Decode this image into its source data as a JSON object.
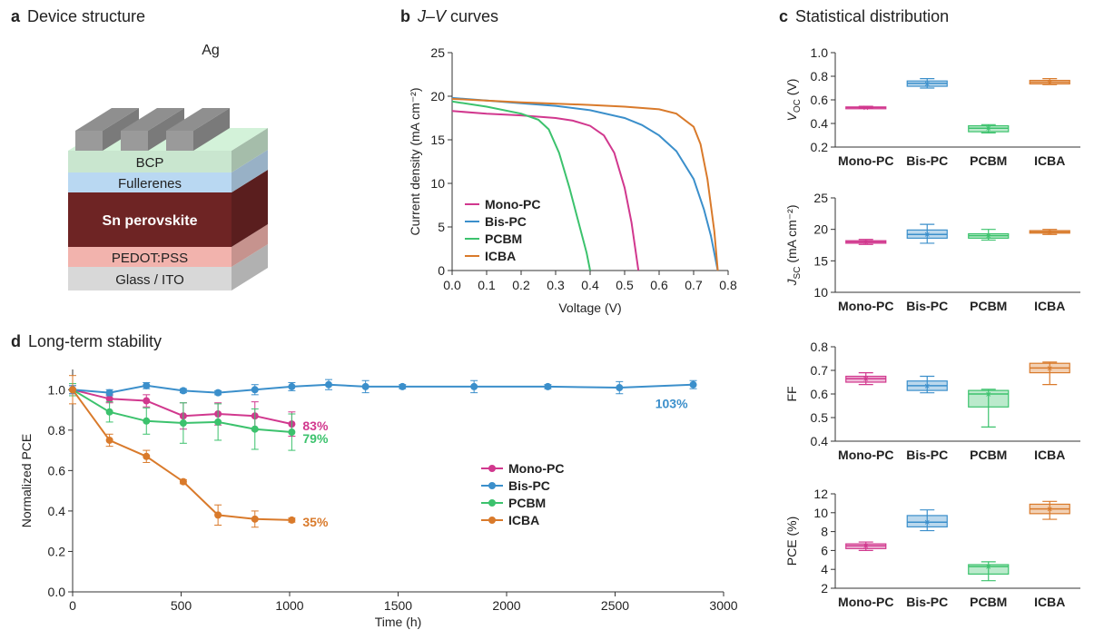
{
  "panels": {
    "a": {
      "letter": "a",
      "title": "Device structure"
    },
    "b": {
      "letter": "b",
      "title_italic": "J–V",
      "title_rest": " curves"
    },
    "c": {
      "letter": "c",
      "title": "Statistical distribution"
    },
    "d": {
      "letter": "d",
      "title": "Long-term stability"
    }
  },
  "device_structure": {
    "layers": [
      {
        "label": "Glass / ITO",
        "color": "#d8d8d8"
      },
      {
        "label": "PEDOT:PSS",
        "color": "#f2b3ad"
      },
      {
        "label": "Sn perovskite",
        "color": "#6e2424"
      },
      {
        "label": "Fullerenes",
        "color": "#b9d8f2"
      },
      {
        "label": "BCP",
        "color": "#c9e6cf"
      }
    ],
    "electrode_label": "Ag",
    "colors": {
      "ag": "#8f8f8f"
    }
  },
  "colors": {
    "Mono-PC": "#d1388e",
    "Bis-PC": "#3b8fcb",
    "PCBM": "#3cc26d",
    "ICBA": "#d97a2b"
  },
  "chart_data": [
    {
      "id": "jv",
      "type": "line",
      "xlabel": "Voltage (V)",
      "ylabel": "Current density (mA cm⁻²)",
      "xlim": [
        0,
        0.8
      ],
      "ylim": [
        0,
        25
      ],
      "xticks": [
        "0.0",
        "0.1",
        "0.2",
        "0.3",
        "0.4",
        "0.5",
        "0.6",
        "0.7",
        "0.8"
      ],
      "yticks": [
        "0",
        "5",
        "10",
        "15",
        "20",
        "25"
      ],
      "legend": "bottom-left",
      "series": [
        {
          "name": "Mono-PC",
          "x": [
            0,
            0.1,
            0.2,
            0.3,
            0.35,
            0.4,
            0.44,
            0.47,
            0.5,
            0.52,
            0.54
          ],
          "y": [
            18.3,
            18.0,
            17.8,
            17.5,
            17.2,
            16.6,
            15.5,
            13.5,
            9.5,
            5.5,
            0
          ]
        },
        {
          "name": "Bis-PC",
          "x": [
            0,
            0.1,
            0.2,
            0.3,
            0.4,
            0.5,
            0.55,
            0.6,
            0.65,
            0.7,
            0.73,
            0.75,
            0.77
          ],
          "y": [
            19.8,
            19.5,
            19.2,
            18.9,
            18.4,
            17.5,
            16.7,
            15.5,
            13.7,
            10.5,
            7.0,
            4.0,
            0
          ]
        },
        {
          "name": "PCBM",
          "x": [
            0,
            0.1,
            0.2,
            0.25,
            0.28,
            0.31,
            0.34,
            0.37,
            0.39,
            0.4
          ],
          "y": [
            19.4,
            18.8,
            18.0,
            17.3,
            16.2,
            13.5,
            9.5,
            5.0,
            2.0,
            0
          ]
        },
        {
          "name": "ICBA",
          "x": [
            0,
            0.2,
            0.4,
            0.5,
            0.6,
            0.65,
            0.7,
            0.72,
            0.74,
            0.76,
            0.77
          ],
          "y": [
            19.7,
            19.3,
            19.0,
            18.8,
            18.5,
            18.0,
            16.5,
            14.5,
            10.5,
            4.5,
            0
          ]
        }
      ]
    },
    {
      "id": "voc",
      "type": "box",
      "ylabel_main": "V",
      "ylabel_sub": "OC",
      "ylabel_unit": " (V)",
      "ylim": [
        0.2,
        1.0
      ],
      "yticks": [
        "0.2",
        "0.4",
        "0.6",
        "0.8",
        "1.0"
      ],
      "categories": [
        "Mono-PC",
        "Bis-PC",
        "PCBM",
        "ICBA"
      ],
      "boxes": [
        {
          "min": 0.53,
          "q1": 0.533,
          "median": 0.536,
          "q3": 0.54,
          "max": 0.545
        },
        {
          "min": 0.7,
          "q1": 0.715,
          "median": 0.74,
          "q3": 0.76,
          "max": 0.78
        },
        {
          "min": 0.32,
          "q1": 0.33,
          "median": 0.36,
          "q3": 0.38,
          "max": 0.39
        },
        {
          "min": 0.73,
          "q1": 0.735,
          "median": 0.75,
          "q3": 0.765,
          "max": 0.78
        }
      ]
    },
    {
      "id": "jsc",
      "type": "box",
      "ylabel_main": "J",
      "ylabel_sub": "SC",
      "ylabel_unit": " (mA cm⁻²)",
      "ylim": [
        10,
        25
      ],
      "yticks": [
        "10",
        "15",
        "20",
        "25"
      ],
      "categories": [
        "Mono-PC",
        "Bis-PC",
        "PCBM",
        "ICBA"
      ],
      "boxes": [
        {
          "min": 17.6,
          "q1": 17.8,
          "median": 18.0,
          "q3": 18.2,
          "max": 18.4
        },
        {
          "min": 17.8,
          "q1": 18.6,
          "median": 19.2,
          "q3": 19.9,
          "max": 20.8
        },
        {
          "min": 18.3,
          "q1": 18.6,
          "median": 19.0,
          "q3": 19.3,
          "max": 20.0
        },
        {
          "min": 19.2,
          "q1": 19.4,
          "median": 19.6,
          "q3": 19.8,
          "max": 20.0
        }
      ]
    },
    {
      "id": "ff",
      "type": "box",
      "ylabel_main": "FF",
      "ylabel_sub": "",
      "ylabel_unit": "",
      "ylim": [
        0.4,
        0.8
      ],
      "yticks": [
        "0.4",
        "0.5",
        "0.6",
        "0.7",
        "0.8"
      ],
      "categories": [
        "Mono-PC",
        "Bis-PC",
        "PCBM",
        "ICBA"
      ],
      "boxes": [
        {
          "min": 0.64,
          "q1": 0.65,
          "median": 0.665,
          "q3": 0.675,
          "max": 0.69
        },
        {
          "min": 0.605,
          "q1": 0.615,
          "median": 0.635,
          "q3": 0.655,
          "max": 0.675
        },
        {
          "min": 0.46,
          "q1": 0.545,
          "median": 0.6,
          "q3": 0.615,
          "max": 0.62
        },
        {
          "min": 0.64,
          "q1": 0.69,
          "median": 0.71,
          "q3": 0.73,
          "max": 0.735
        }
      ]
    },
    {
      "id": "pce",
      "type": "box",
      "ylabel_main": "PCE (%)",
      "ylabel_sub": "",
      "ylabel_unit": "",
      "ylim": [
        2,
        12
      ],
      "yticks": [
        "2",
        "4",
        "6",
        "8",
        "10",
        "12"
      ],
      "categories": [
        "Mono-PC",
        "Bis-PC",
        "PCBM",
        "ICBA"
      ],
      "boxes": [
        {
          "min": 6.0,
          "q1": 6.2,
          "median": 6.5,
          "q3": 6.7,
          "max": 6.9
        },
        {
          "min": 8.1,
          "q1": 8.5,
          "median": 9.0,
          "q3": 9.7,
          "max": 10.3
        },
        {
          "min": 2.8,
          "q1": 3.5,
          "median": 4.3,
          "q3": 4.5,
          "max": 4.8
        },
        {
          "min": 9.3,
          "q1": 9.9,
          "median": 10.4,
          "q3": 10.9,
          "max": 11.2
        }
      ]
    },
    {
      "id": "stability",
      "type": "line",
      "xlabel": "Time (h)",
      "ylabel": "Normalized PCE",
      "xlim": [
        0,
        3000
      ],
      "ylim": [
        0,
        1.1
      ],
      "xticks": [
        "0",
        "500",
        "1000",
        "1500",
        "2000",
        "2500",
        "3000"
      ],
      "yticks": [
        "0.0",
        "0.2",
        "0.4",
        "0.6",
        "0.8",
        "1.0"
      ],
      "legend": "center",
      "series": [
        {
          "name": "Mono-PC",
          "end_label": "83%",
          "x": [
            0,
            170,
            340,
            510,
            670,
            840,
            1010
          ],
          "y": [
            1.0,
            0.955,
            0.945,
            0.87,
            0.88,
            0.87,
            0.83
          ],
          "err": [
            0.02,
            0.02,
            0.03,
            0.065,
            0.055,
            0.07,
            0.06
          ]
        },
        {
          "name": "Bis-PC",
          "end_label": "103%",
          "x": [
            0,
            170,
            340,
            510,
            670,
            840,
            1010,
            1180,
            1350,
            1520,
            1850,
            2190,
            2520,
            2860
          ],
          "y": [
            1.0,
            0.985,
            1.02,
            0.995,
            0.985,
            1.0,
            1.015,
            1.025,
            1.015,
            1.015,
            1.015,
            1.015,
            1.01,
            1.025
          ],
          "err": [
            0.02,
            0.015,
            0.015,
            0.01,
            0.01,
            0.025,
            0.02,
            0.025,
            0.03,
            0.01,
            0.03,
            0.01,
            0.03,
            0.02
          ]
        },
        {
          "name": "PCBM",
          "end_label": "79%",
          "x": [
            0,
            170,
            340,
            510,
            670,
            840,
            1010
          ],
          "y": [
            1.0,
            0.89,
            0.845,
            0.835,
            0.84,
            0.805,
            0.79
          ],
          "err": [
            0.03,
            0.05,
            0.065,
            0.1,
            0.09,
            0.1,
            0.09
          ]
        },
        {
          "name": "ICBA",
          "end_label": "35%",
          "x": [
            0,
            170,
            340,
            510,
            670,
            840,
            1010
          ],
          "y": [
            1.0,
            0.75,
            0.67,
            0.545,
            0.38,
            0.36,
            0.355
          ],
          "err": [
            0.07,
            0.03,
            0.03,
            0.01,
            0.05,
            0.04,
            0.01
          ]
        }
      ]
    }
  ]
}
